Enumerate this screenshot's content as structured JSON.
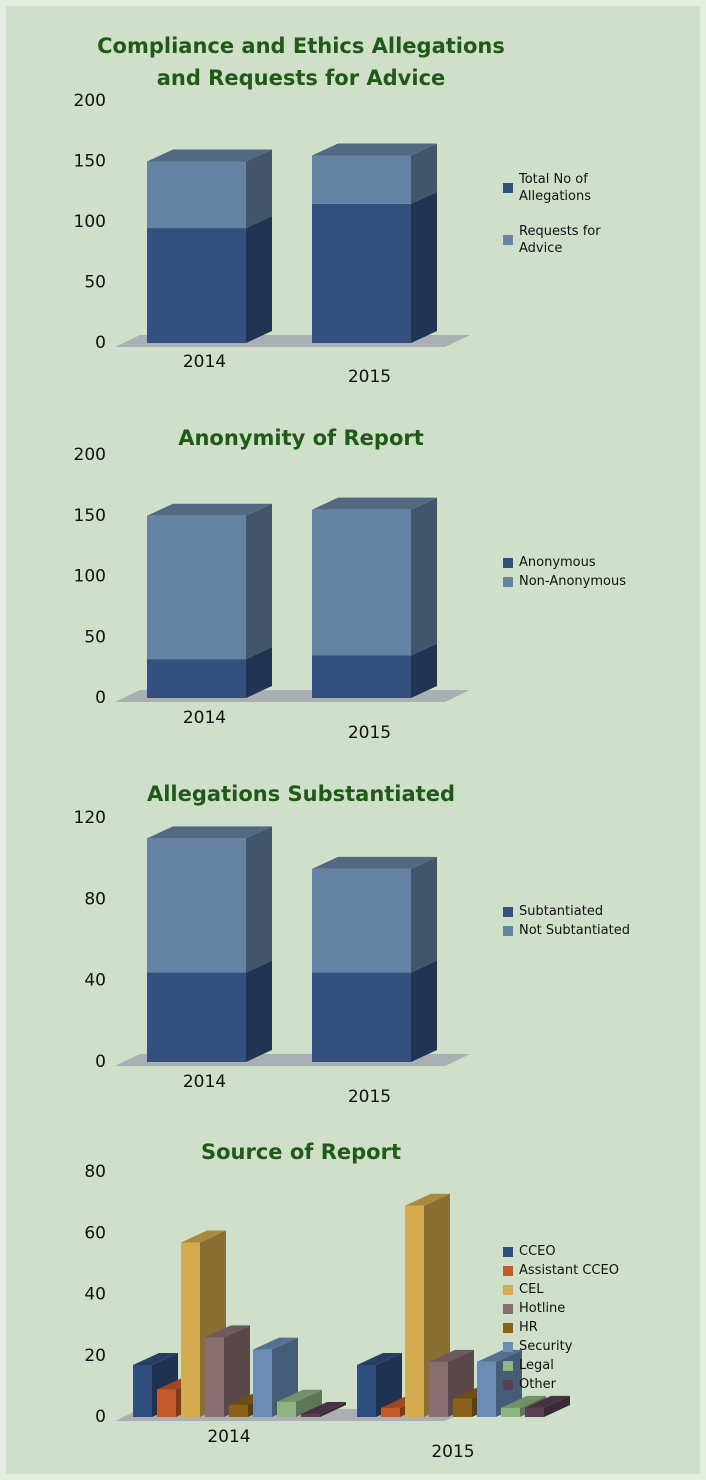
{
  "chart_data": [
    {
      "type": "stacked-bar",
      "title": "Compliance and Ethics Allegations and Requests for Advice",
      "categories": [
        "2014",
        "2015"
      ],
      "series": [
        {
          "name": "Total No of Allegations",
          "color": "#34507f",
          "values": [
            95,
            115
          ]
        },
        {
          "name": "Requests for Advice",
          "color": "#6683a3",
          "values": [
            55,
            40
          ]
        }
      ],
      "ylim": [
        0,
        200
      ],
      "yticks": [
        0,
        50,
        100,
        150,
        200
      ]
    },
    {
      "type": "stacked-bar",
      "title": "Anonymity of Report",
      "categories": [
        "2014",
        "2015"
      ],
      "series": [
        {
          "name": "Anonymous",
          "color": "#34507f",
          "values": [
            32,
            35
          ]
        },
        {
          "name": "Non-Anonymous",
          "color": "#6683a3",
          "values": [
            118,
            120
          ]
        }
      ],
      "ylim": [
        0,
        200
      ],
      "yticks": [
        0,
        50,
        100,
        150,
        200
      ]
    },
    {
      "type": "stacked-bar",
      "title": "Allegations Substantiated",
      "categories": [
        "2014",
        "2015"
      ],
      "series": [
        {
          "name": "Subtantiated",
          "color": "#34507f",
          "values": [
            44,
            44
          ]
        },
        {
          "name": "Not Subtantiated",
          "color": "#6683a3",
          "values": [
            66,
            51
          ]
        }
      ],
      "ylim": [
        0,
        120
      ],
      "yticks": [
        0,
        40,
        80,
        120
      ]
    },
    {
      "type": "grouped-bar",
      "title": "Source of Report",
      "categories": [
        "2014",
        "2015"
      ],
      "series": [
        {
          "name": "CCEO",
          "color": "#2f4d7e",
          "values": [
            17,
            17
          ]
        },
        {
          "name": "Assistant CCEO",
          "color": "#c55a2a",
          "values": [
            9,
            3
          ]
        },
        {
          "name": "CEL",
          "color": "#d5ab4f",
          "values": [
            57,
            69
          ]
        },
        {
          "name": "Hotline",
          "color": "#8a6f72",
          "values": [
            26,
            18
          ]
        },
        {
          "name": "HR",
          "color": "#8a621a",
          "values": [
            4,
            6
          ]
        },
        {
          "name": "Security",
          "color": "#6a8db5",
          "values": [
            22,
            18
          ]
        },
        {
          "name": "Legal",
          "color": "#8fb583",
          "values": [
            5,
            3
          ]
        },
        {
          "name": "Other",
          "color": "#5a3f52",
          "values": [
            1,
            3
          ]
        }
      ],
      "ylim": [
        0,
        80
      ],
      "yticks": [
        0,
        20,
        40,
        60,
        80
      ]
    }
  ]
}
